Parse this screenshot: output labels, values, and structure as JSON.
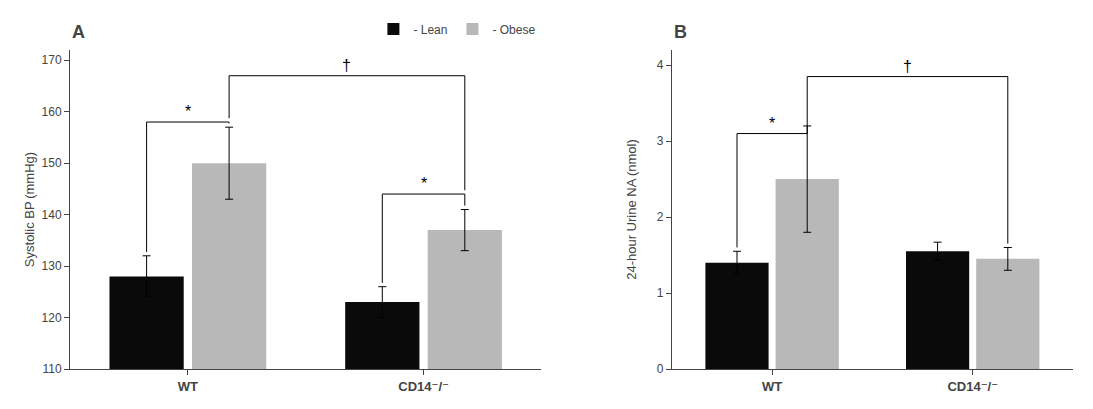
{
  "chart_data": [
    {
      "type": "bar",
      "title": "A",
      "ylabel": "Systolic BP (mmHg)",
      "categories": [
        "WT",
        "CD14⁻/⁻"
      ],
      "series": [
        {
          "name": "- Lean",
          "color": "#0a0a0a",
          "values": [
            128,
            123
          ],
          "errors": [
            4,
            3
          ]
        },
        {
          "name": "- Obese",
          "color": "#b8b8b8",
          "values": [
            150,
            137
          ],
          "errors": [
            7,
            4
          ]
        }
      ],
      "ylim": [
        110,
        172
      ],
      "yticks": [
        110,
        120,
        130,
        140,
        150,
        160,
        170
      ],
      "grid": false,
      "legend": "upper right",
      "annotations": [
        {
          "text": "*",
          "category": "WT",
          "series": [
            "- Lean",
            "- Obese"
          ],
          "y": 158
        },
        {
          "text": "*",
          "category": "CD14⁻/⁻",
          "series": [
            "- Lean",
            "- Obese"
          ],
          "y": 144
        },
        {
          "text": "†",
          "categories": [
            "WT",
            "CD14⁻/⁻"
          ],
          "series": "- Obese",
          "y": 167
        }
      ]
    },
    {
      "type": "bar",
      "title": "B",
      "ylabel": "24-hour Urine NA (nmol)",
      "categories": [
        "WT",
        "CD14⁻/⁻"
      ],
      "series": [
        {
          "name": "- Lean",
          "color": "#0a0a0a",
          "values": [
            1.4,
            1.55
          ],
          "errors": [
            0.15,
            0.12
          ]
        },
        {
          "name": "- Obese",
          "color": "#b8b8b8",
          "values": [
            2.5,
            1.45
          ],
          "errors": [
            0.7,
            0.15
          ]
        }
      ],
      "ylim": [
        0,
        4.2
      ],
      "yticks": [
        0,
        1,
        2,
        3,
        4
      ],
      "grid": false,
      "annotations": [
        {
          "text": "*",
          "category": "WT",
          "series": [
            "- Lean",
            "- Obese"
          ],
          "y": 3.1
        },
        {
          "text": "†",
          "categories": [
            "WT",
            "CD14⁻/⁻"
          ],
          "series": "- Obese",
          "y": 3.85
        }
      ]
    }
  ]
}
